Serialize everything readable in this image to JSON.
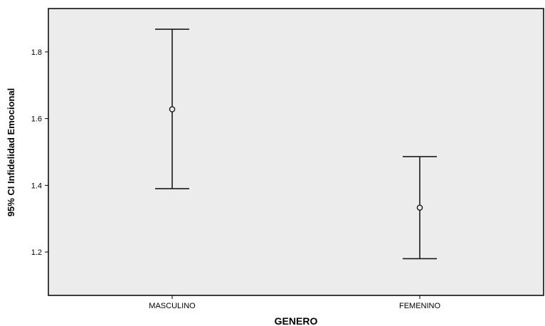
{
  "chart_data": {
    "type": "errorbar",
    "xlabel": "GENERO",
    "ylabel": "95% CI Infidelidad Emocional",
    "categories": [
      "MASCULINO",
      "FEMENINO"
    ],
    "series": [
      {
        "values": [
          1.628,
          1.333
        ],
        "ci_lower": [
          1.39,
          1.18
        ],
        "ci_upper": [
          1.868,
          1.486
        ]
      }
    ],
    "ylim": [
      1.07,
      1.93
    ],
    "yticks": [
      "1.2",
      "1.4",
      "1.6",
      "1.8"
    ],
    "grid": false,
    "colors": {
      "plot_background": "#ececec",
      "marks": "#1a1a1a"
    }
  }
}
